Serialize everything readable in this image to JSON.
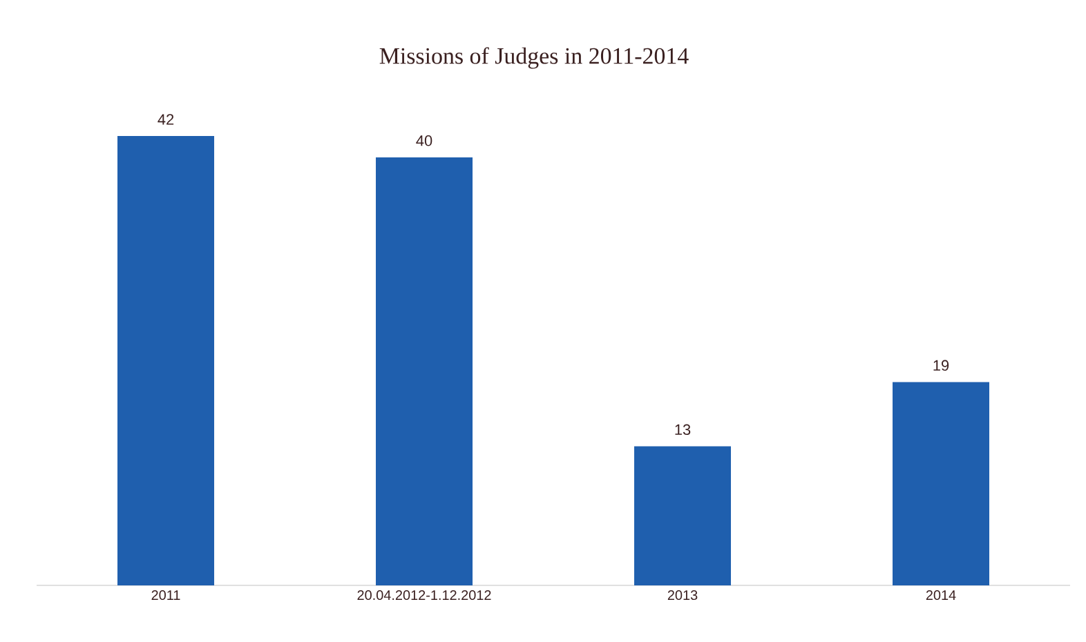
{
  "chart_data": {
    "type": "bar",
    "title": "Missions of Judges in 2011-2014",
    "categories": [
      "2011",
      "20.04.2012-1.12.2012",
      "2013",
      "2014"
    ],
    "values": [
      42,
      40,
      13,
      19
    ],
    "color": "#1f5fae",
    "tick_labels": "x",
    "data_labels": true
  }
}
